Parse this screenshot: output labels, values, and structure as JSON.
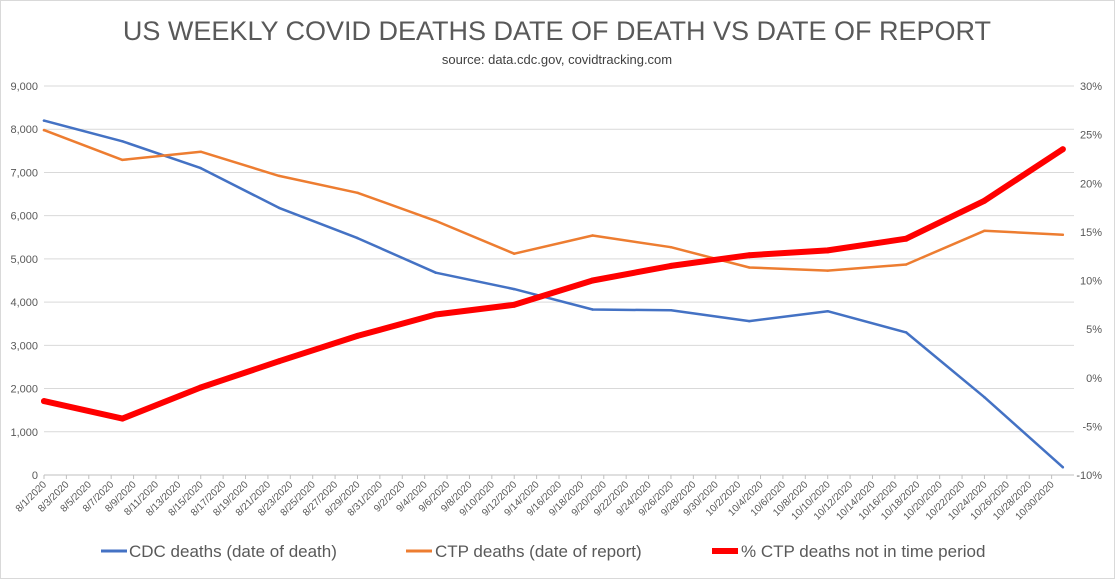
{
  "chart_data": {
    "type": "line",
    "title": "US WEEKLY COVID DEATHS DATE OF DEATH VS DATE OF REPORT",
    "subtitle": "source: data.cdc.gov, covidtracking.com",
    "x_tick_labels": [
      "8/1/2020",
      "8/3/2020",
      "8/5/2020",
      "8/7/2020",
      "8/9/2020",
      "8/11/2020",
      "8/13/2020",
      "8/15/2020",
      "8/17/2020",
      "8/19/2020",
      "8/21/2020",
      "8/23/2020",
      "8/25/2020",
      "8/27/2020",
      "8/29/2020",
      "8/31/2020",
      "9/2/2020",
      "9/4/2020",
      "9/6/2020",
      "9/8/2020",
      "9/10/2020",
      "9/12/2020",
      "9/14/2020",
      "9/16/2020",
      "9/18/2020",
      "9/20/2020",
      "9/22/2020",
      "9/24/2020",
      "9/26/2020",
      "9/28/2020",
      "9/30/2020",
      "10/2/2020",
      "10/4/2020",
      "10/6/2020",
      "10/8/2020",
      "10/10/2020",
      "10/12/2020",
      "10/14/2020",
      "10/16/2020",
      "10/18/2020",
      "10/20/2020",
      "10/22/2020",
      "10/24/2020",
      "10/26/2020",
      "10/28/2020",
      "10/30/2020"
    ],
    "y_left": {
      "min": 0,
      "max": 9000,
      "step": 1000,
      "ticks": [
        "0",
        "1,000",
        "2,000",
        "3,000",
        "4,000",
        "5,000",
        "6,000",
        "7,000",
        "8,000",
        "9,000"
      ]
    },
    "y_right": {
      "min": -10,
      "max": 30,
      "step": 5,
      "ticks": [
        "-10%",
        "-5%",
        "0%",
        "5%",
        "10%",
        "15%",
        "20%",
        "25%",
        "30%"
      ]
    },
    "gridlines": "horizontal",
    "legend_position": "bottom",
    "series": [
      {
        "name": "CDC deaths (date of death)",
        "color": "#4472c4",
        "axis": "left",
        "x": [
          "8/1/2020",
          "8/8/2020",
          "8/15/2020",
          "8/22/2020",
          "8/29/2020",
          "9/5/2020",
          "9/12/2020",
          "9/19/2020",
          "9/26/2020",
          "10/3/2020",
          "10/10/2020",
          "10/17/2020",
          "10/24/2020",
          "10/31/2020"
        ],
        "values": [
          8200,
          7720,
          7100,
          6180,
          5480,
          4680,
          4300,
          3830,
          3810,
          3560,
          3790,
          3300,
          1800,
          180
        ]
      },
      {
        "name": "CTP deaths (date of report)",
        "color": "#ed7d31",
        "axis": "left",
        "x": [
          "8/1/2020",
          "8/8/2020",
          "8/15/2020",
          "8/22/2020",
          "8/29/2020",
          "9/5/2020",
          "9/12/2020",
          "9/19/2020",
          "9/26/2020",
          "10/3/2020",
          "10/10/2020",
          "10/17/2020",
          "10/24/2020",
          "10/31/2020"
        ],
        "values": [
          7980,
          7290,
          7480,
          6920,
          6530,
          5880,
          5120,
          5540,
          5270,
          4800,
          4730,
          4870,
          5650,
          5560
        ]
      },
      {
        "name": "% CTP deaths not in time period",
        "color": "#ff0000",
        "axis": "right",
        "x": [
          "8/1/2020",
          "8/8/2020",
          "8/15/2020",
          "8/22/2020",
          "8/29/2020",
          "9/5/2020",
          "9/12/2020",
          "9/19/2020",
          "9/26/2020",
          "10/3/2020",
          "10/10/2020",
          "10/17/2020",
          "10/24/2020",
          "10/31/2020"
        ],
        "values": [
          -2.4,
          -4.2,
          -1.0,
          1.7,
          4.3,
          6.5,
          7.5,
          10.0,
          11.5,
          12.6,
          13.1,
          14.3,
          18.2,
          23.5
        ]
      }
    ]
  }
}
